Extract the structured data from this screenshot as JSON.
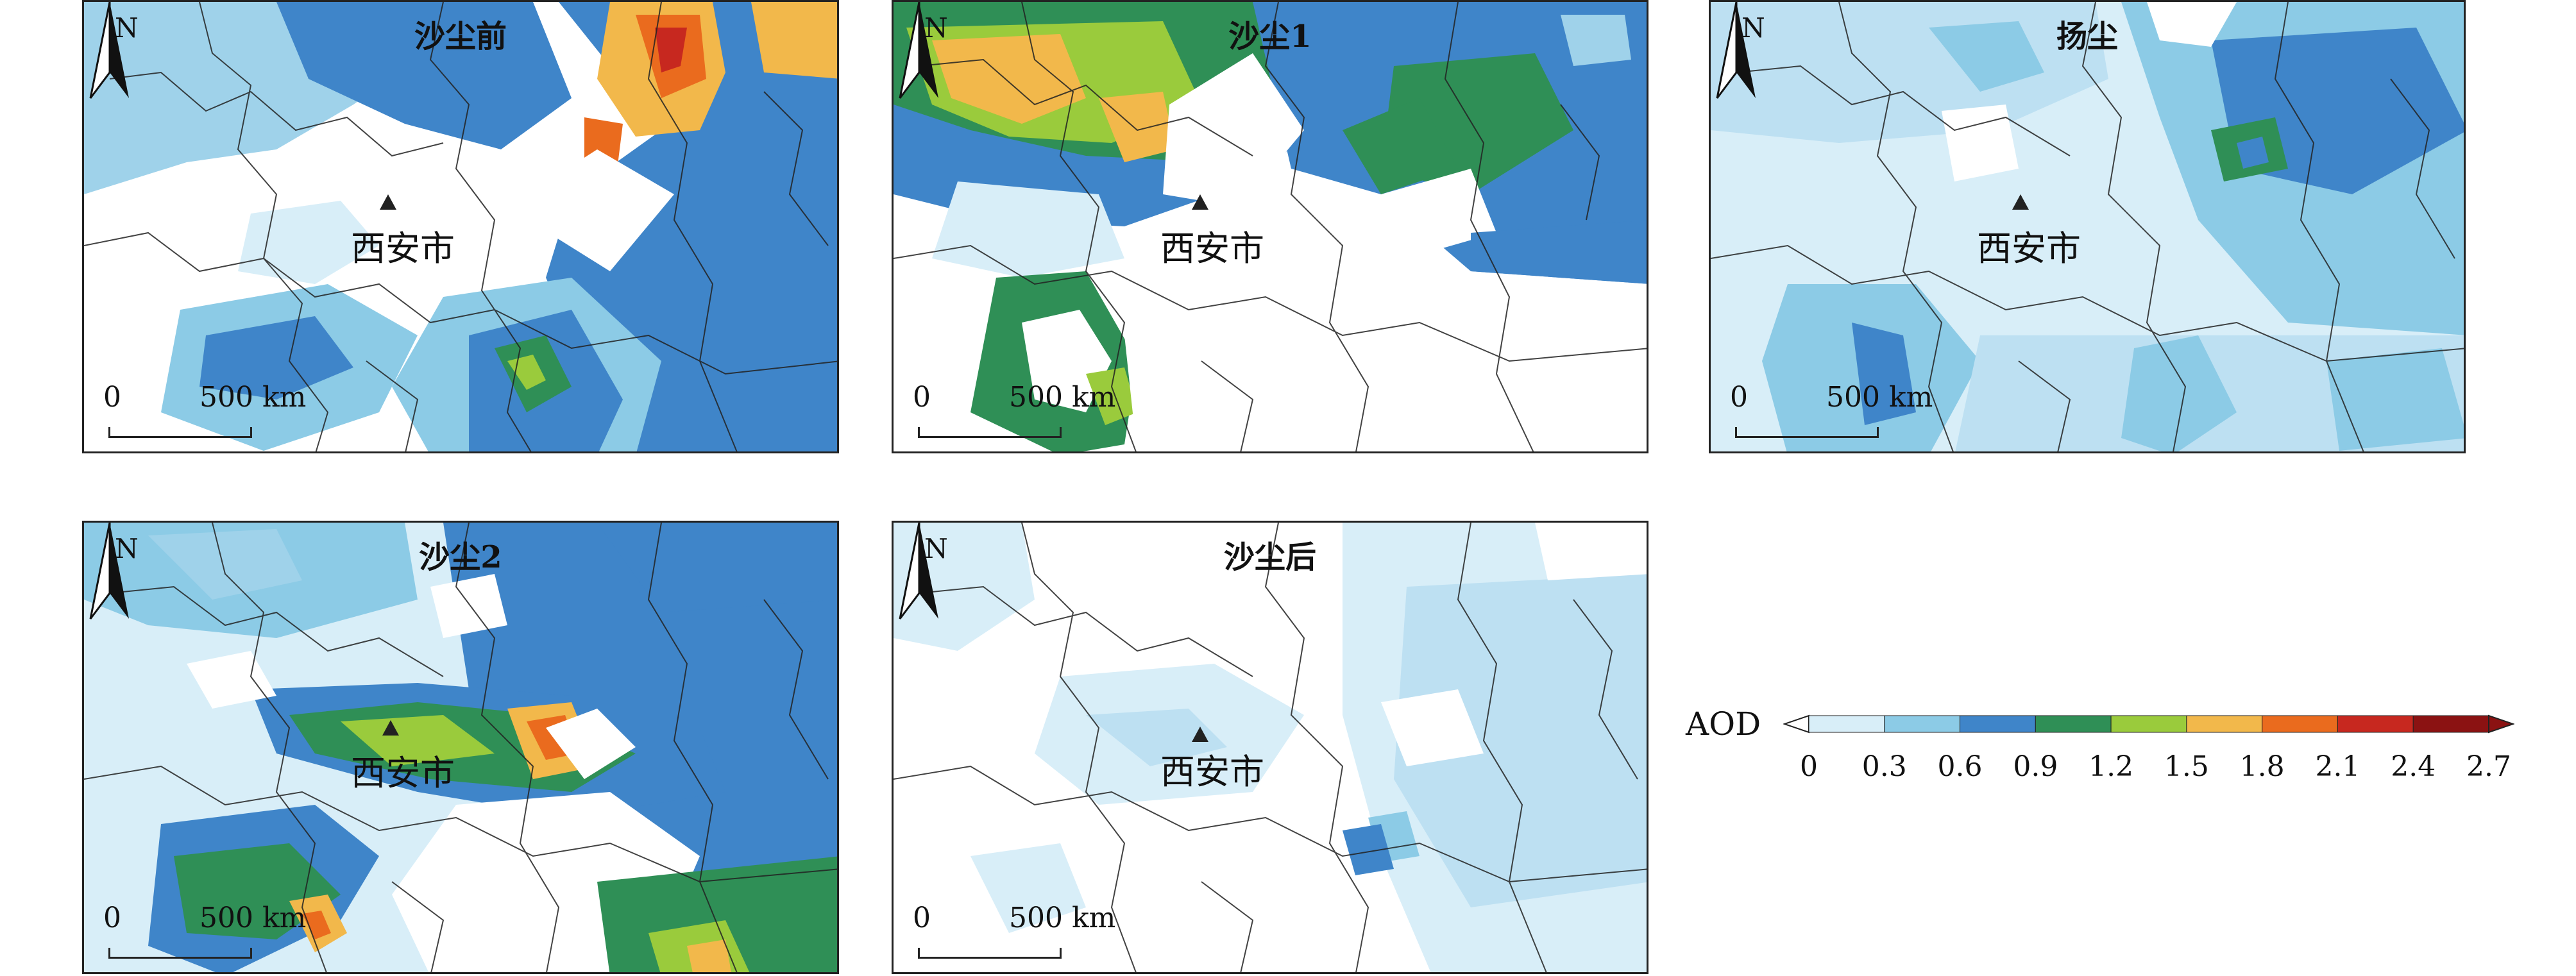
{
  "panels": [
    {
      "title": "沙尘前",
      "city": "西安市",
      "north": "N",
      "scale_start": "0",
      "scale_end": "500 km"
    },
    {
      "title": "沙尘1",
      "city": "西安市",
      "north": "N",
      "scale_start": "0",
      "scale_end": "500 km"
    },
    {
      "title": "扬尘",
      "city": "西安市",
      "north": "N",
      "scale_start": "0",
      "scale_end": "500 km"
    },
    {
      "title": "沙尘2",
      "city": "西安市",
      "north": "N",
      "scale_start": "0",
      "scale_end": "500 km"
    },
    {
      "title": "沙尘后",
      "city": "西安市",
      "north": "N",
      "scale_start": "0",
      "scale_end": "500 km"
    }
  ],
  "legend": {
    "title": "AOD",
    "ticks": [
      "0",
      "0.3",
      "0.6",
      "0.9",
      "1.2",
      "1.5",
      "1.8",
      "2.1",
      "2.4",
      "2.7"
    ],
    "colors": [
      "#d8eef8",
      "#8ccbe6",
      "#3f85c9",
      "#2f8f56",
      "#9acb3c",
      "#f2b84b",
      "#ea6b1e",
      "#c7281f",
      "#8b1212"
    ]
  }
}
